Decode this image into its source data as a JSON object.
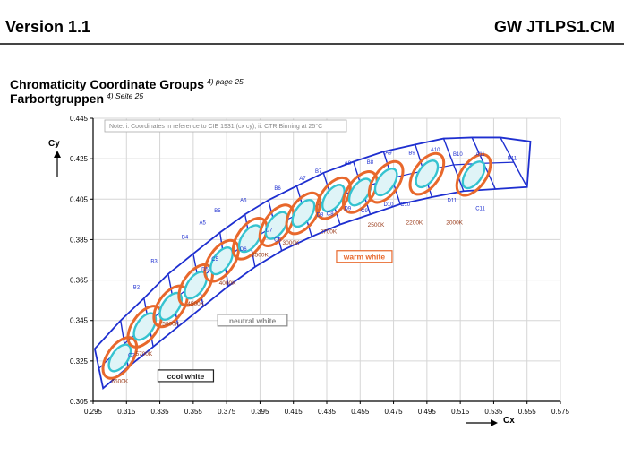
{
  "header": {
    "version": "Version 1.1",
    "product": "GW JTLPS1.CM"
  },
  "section": {
    "title_en": "Chromaticity Coordinate Groups",
    "title_en_ref": "4) page 25",
    "title_de": "Farbortgruppen",
    "title_de_ref": "4) Seite 25"
  },
  "chart_data": {
    "type": "scatter",
    "note": "Note: i. Coordinates in reference to CIE 1931 (cx cy); ii. CTR Binning at 25°C",
    "xlabel": "Cx",
    "ylabel": "Cy",
    "xlim": [
      0.295,
      0.575
    ],
    "ylim": [
      0.305,
      0.445
    ],
    "x_ticks": [
      "0.295",
      "0.315",
      "0.335",
      "0.355",
      "0.375",
      "0.395",
      "0.415",
      "0.435",
      "0.455",
      "0.475",
      "0.495",
      "0.515",
      "0.535",
      "0.555",
      "0.575"
    ],
    "y_ticks": [
      "0.305",
      "0.325",
      "0.345",
      "0.365",
      "0.385",
      "0.405",
      "0.425",
      "0.445"
    ],
    "grid": true,
    "upper_boundary": [
      [
        0.296,
        0.331
      ],
      [
        0.3115,
        0.345
      ],
      [
        0.3255,
        0.356
      ],
      [
        0.34,
        0.368
      ],
      [
        0.355,
        0.378
      ],
      [
        0.371,
        0.3885
      ],
      [
        0.386,
        0.3975
      ],
      [
        0.4,
        0.4045
      ],
      [
        0.417,
        0.4115
      ],
      [
        0.433,
        0.418
      ],
      [
        0.451,
        0.4235
      ],
      [
        0.469,
        0.4285
      ],
      [
        0.488,
        0.432
      ],
      [
        0.505,
        0.435
      ],
      [
        0.522,
        0.4355
      ],
      [
        0.539,
        0.4355
      ],
      [
        0.557,
        0.4335
      ]
    ],
    "lower_boundary": [
      [
        0.301,
        0.3115
      ],
      [
        0.316,
        0.322
      ],
      [
        0.331,
        0.332
      ],
      [
        0.346,
        0.342
      ],
      [
        0.361,
        0.352
      ],
      [
        0.376,
        0.362
      ],
      [
        0.392,
        0.3715
      ],
      [
        0.408,
        0.3795
      ],
      [
        0.426,
        0.3865
      ],
      [
        0.443,
        0.3925
      ],
      [
        0.461,
        0.3975
      ],
      [
        0.479,
        0.4025
      ],
      [
        0.498,
        0.406
      ],
      [
        0.517,
        0.409
      ],
      [
        0.536,
        0.41
      ],
      [
        0.555,
        0.411
      ]
    ],
    "bins": [
      {
        "id": "1",
        "x": 0.311,
        "y": 0.3265
      },
      {
        "id": "2",
        "x": 0.326,
        "y": 0.342
      },
      {
        "id": "3",
        "x": 0.3415,
        "y": 0.352
      },
      {
        "id": "4",
        "x": 0.3565,
        "y": 0.3625
      },
      {
        "id": "5",
        "x": 0.372,
        "y": 0.3745
      },
      {
        "id": "6",
        "x": 0.389,
        "y": 0.3855
      },
      {
        "id": "7",
        "x": 0.405,
        "y": 0.392
      },
      {
        "id": "8",
        "x": 0.421,
        "y": 0.398
      },
      {
        "id": "9",
        "x": 0.439,
        "y": 0.4055
      },
      {
        "id": "10",
        "x": 0.455,
        "y": 0.4085
      },
      {
        "id": "11",
        "x": 0.4705,
        "y": 0.4135
      },
      {
        "id": "12",
        "x": 0.495,
        "y": 0.4175
      },
      {
        "id": "13",
        "x": 0.523,
        "y": 0.417
      }
    ],
    "bin_labels": [
      {
        "text": "A10",
        "x": 0.5,
        "y": 0.4285
      },
      {
        "text": "B10",
        "x": 0.5135,
        "y": 0.4265
      },
      {
        "text": "A11",
        "x": 0.527,
        "y": 0.4265
      },
      {
        "text": "B11",
        "x": 0.546,
        "y": 0.4245
      },
      {
        "text": "B9",
        "x": 0.486,
        "y": 0.427
      },
      {
        "text": "A9",
        "x": 0.472,
        "y": 0.427
      },
      {
        "text": "B8",
        "x": 0.461,
        "y": 0.4225
      },
      {
        "text": "A8",
        "x": 0.4475,
        "y": 0.422
      },
      {
        "text": "B7",
        "x": 0.43,
        "y": 0.418
      },
      {
        "text": "A7",
        "x": 0.4205,
        "y": 0.4145
      },
      {
        "text": "B6",
        "x": 0.4055,
        "y": 0.4095
      },
      {
        "text": "A6",
        "x": 0.385,
        "y": 0.4035
      },
      {
        "text": "B5",
        "x": 0.3695,
        "y": 0.3985
      },
      {
        "text": "A5",
        "x": 0.3605,
        "y": 0.3925
      },
      {
        "text": "B4",
        "x": 0.35,
        "y": 0.3855
      },
      {
        "text": "B3",
        "x": 0.3315,
        "y": 0.3735
      },
      {
        "text": "B2",
        "x": 0.321,
        "y": 0.3605
      },
      {
        "text": "C2",
        "x": 0.318,
        "y": 0.327
      },
      {
        "text": "D5",
        "x": 0.362,
        "y": 0.3695
      },
      {
        "text": "C5",
        "x": 0.368,
        "y": 0.3745
      },
      {
        "text": "D6",
        "x": 0.385,
        "y": 0.3795
      },
      {
        "text": "C6",
        "x": 0.4055,
        "y": 0.384
      },
      {
        "text": "D7",
        "x": 0.4005,
        "y": 0.389
      },
      {
        "text": "D8",
        "x": 0.431,
        "y": 0.3965
      },
      {
        "text": "C8",
        "x": 0.437,
        "y": 0.397
      },
      {
        "text": "D9",
        "x": 0.4475,
        "y": 0.3995
      },
      {
        "text": "C9",
        "x": 0.4575,
        "y": 0.3985
      },
      {
        "text": "D10",
        "x": 0.472,
        "y": 0.4015
      },
      {
        "text": "C10",
        "x": 0.482,
        "y": 0.4015
      },
      {
        "text": "D11",
        "x": 0.51,
        "y": 0.4035
      },
      {
        "text": "C11",
        "x": 0.527,
        "y": 0.3995
      }
    ],
    "cct_labels": [
      {
        "text": "6500K",
        "x": 0.311,
        "y": 0.314
      },
      {
        "text": "5700K",
        "x": 0.3255,
        "y": 0.3275
      },
      {
        "text": "5000K",
        "x": 0.3415,
        "y": 0.3425
      },
      {
        "text": "4500K",
        "x": 0.3565,
        "y": 0.3525
      },
      {
        "text": "4000K",
        "x": 0.3755,
        "y": 0.3625
      },
      {
        "text": "3500K",
        "x": 0.395,
        "y": 0.3765
      },
      {
        "text": "3000K",
        "x": 0.4135,
        "y": 0.3825
      },
      {
        "text": "2700K",
        "x": 0.436,
        "y": 0.388
      },
      {
        "text": "2500K",
        "x": 0.4645,
        "y": 0.3915
      },
      {
        "text": "2200K",
        "x": 0.4875,
        "y": 0.3925
      },
      {
        "text": "2000K",
        "x": 0.5115,
        "y": 0.3925
      }
    ],
    "annotations": [
      {
        "text": "warm white",
        "x": 0.4575,
        "y": 0.376,
        "color": "#e8682c"
      },
      {
        "text": "neutral white",
        "x": 0.3905,
        "y": 0.3445,
        "color": "#888888"
      },
      {
        "text": "cool white",
        "x": 0.3505,
        "y": 0.317,
        "color": "#222222"
      }
    ],
    "colors": {
      "boundary": "#1e2fd0",
      "ellipse_outer": "#e8682c",
      "ellipse_inner": "#35c3d0"
    }
  }
}
